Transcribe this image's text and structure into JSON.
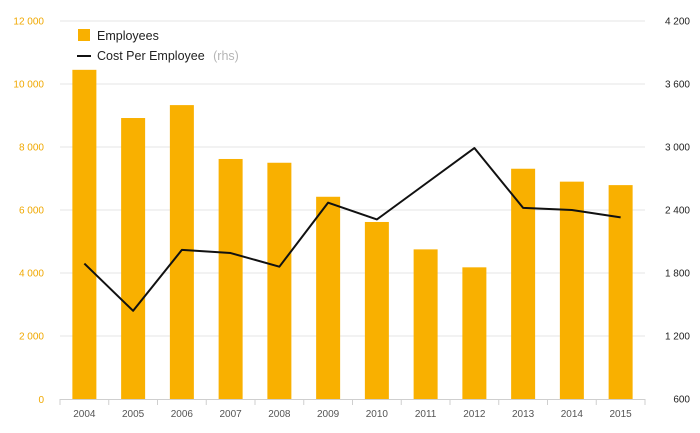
{
  "chart_data": {
    "type": "bar",
    "categories": [
      "2004",
      "2005",
      "2006",
      "2007",
      "2008",
      "2009",
      "2010",
      "2011",
      "2012",
      "2013",
      "2014",
      "2015"
    ],
    "series": [
      {
        "name": "Employees",
        "type": "bar",
        "axis": "left",
        "color": "#f9b000",
        "values": [
          10450,
          8920,
          9330,
          7620,
          7500,
          6420,
          5620,
          4750,
          4180,
          7310,
          6900,
          6790
        ]
      },
      {
        "name": "Cost Per Employee",
        "name_suffix": "(rhs)",
        "type": "line",
        "axis": "right",
        "color": "#111111",
        "values": [
          1890,
          1440,
          2020,
          1990,
          1860,
          2470,
          2310,
          2650,
          2990,
          2420,
          2400,
          2330
        ]
      }
    ],
    "left_axis": {
      "ylim": [
        0,
        12000
      ],
      "ticks": [
        0,
        2000,
        4000,
        6000,
        8000,
        10000,
        12000
      ],
      "tick_labels": [
        "0",
        "2 000",
        "4 000",
        "6 000",
        "8 000",
        "10 000",
        "12 000"
      ],
      "color": "#f0a800"
    },
    "right_axis": {
      "ylim": [
        600,
        4200
      ],
      "ticks": [
        600,
        1200,
        1800,
        2400,
        3000,
        3600,
        4200
      ],
      "tick_labels": [
        "600",
        "1 200",
        "1 800",
        "2 400",
        "3 000",
        "3 600",
        "4 200"
      ],
      "color": "#222222"
    },
    "grid": true,
    "legend_position": "top-left"
  }
}
